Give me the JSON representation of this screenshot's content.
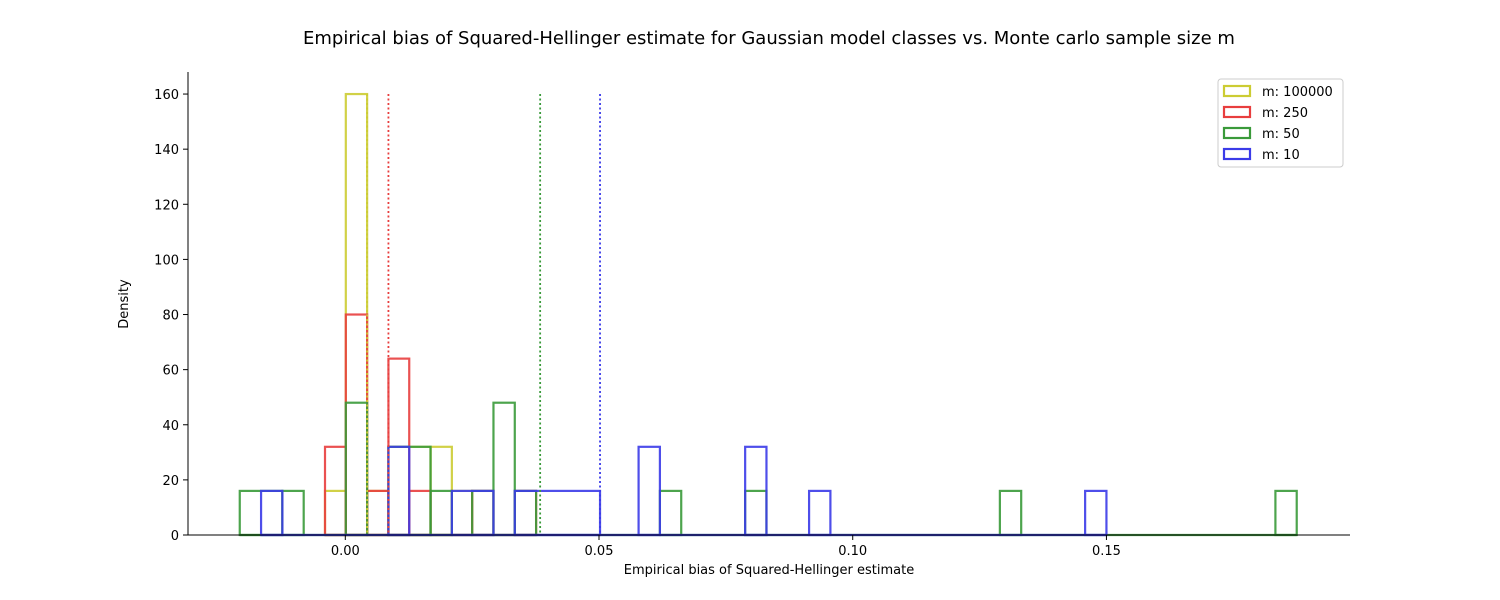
{
  "chart_data": {
    "type": "histogram",
    "title": "Empirical bias of Squared-Hellinger estimate for Gaussian model classes vs. Monte carlo sample size m",
    "xlabel": "Empirical bias of Squared-Hellinger estimate",
    "ylabel": "Density",
    "xlim": [
      -0.031,
      0.198
    ],
    "ylim": [
      0,
      168
    ],
    "x_ticks": [
      0.0,
      0.05,
      0.1,
      0.15
    ],
    "x_tick_labels": [
      "0.00",
      "0.05",
      "0.10",
      "0.15"
    ],
    "y_ticks": [
      0,
      20,
      40,
      60,
      80,
      100,
      120,
      140,
      160
    ],
    "y_tick_labels": [
      "0",
      "20",
      "40",
      "60",
      "80",
      "100",
      "120",
      "140",
      "160"
    ],
    "grid": false,
    "legend_position": "top-right",
    "series": [
      {
        "name": "m: 100000",
        "color": "#cccc33",
        "mean": 0.0043,
        "bins": [
          [
            -0.004,
            0.0001,
            16
          ],
          [
            0.0001,
            0.0043,
            160
          ],
          [
            0.0043,
            0.0085,
            16
          ],
          [
            0.0085,
            0.0168,
            32
          ],
          [
            0.0168,
            0.021,
            32
          ],
          [
            0.021,
            0.025,
            16
          ]
        ]
      },
      {
        "name": "m: 250",
        "color": "#e83e3e",
        "mean": 0.0085,
        "bins": [
          [
            -0.004,
            0.0001,
            32
          ],
          [
            0.0001,
            0.0043,
            80
          ],
          [
            0.0043,
            0.0085,
            16
          ],
          [
            0.0085,
            0.0126,
            64
          ],
          [
            0.0126,
            0.0168,
            16
          ],
          [
            0.025,
            0.0292,
            16
          ],
          [
            0.0334,
            0.0376,
            16
          ]
        ]
      },
      {
        "name": "m: 50",
        "color": "#3a9a3a",
        "mean": 0.0384,
        "bins": [
          [
            -0.0208,
            -0.0124,
            16
          ],
          [
            -0.0124,
            -0.0082,
            16
          ],
          [
            0.0001,
            0.0043,
            48
          ],
          [
            0.0085,
            0.0168,
            32
          ],
          [
            0.0168,
            0.021,
            16
          ],
          [
            0.025,
            0.0292,
            16
          ],
          [
            0.0292,
            0.0334,
            48
          ],
          [
            0.0334,
            0.0376,
            16
          ],
          [
            0.062,
            0.0662,
            16
          ],
          [
            0.0788,
            0.083,
            16
          ],
          [
            0.129,
            0.1332,
            16
          ],
          [
            0.1833,
            0.1875,
            16
          ]
        ]
      },
      {
        "name": "m: 10",
        "color": "#3b3be8",
        "mean": 0.0502,
        "bins": [
          [
            -0.0166,
            -0.0124,
            16
          ],
          [
            0.0085,
            0.0126,
            32
          ],
          [
            0.021,
            0.0292,
            16
          ],
          [
            0.0334,
            0.0502,
            16
          ],
          [
            0.0578,
            0.062,
            32
          ],
          [
            0.0788,
            0.083,
            32
          ],
          [
            0.0914,
            0.0956,
            16
          ],
          [
            0.1458,
            0.15,
            16
          ]
        ]
      }
    ]
  }
}
